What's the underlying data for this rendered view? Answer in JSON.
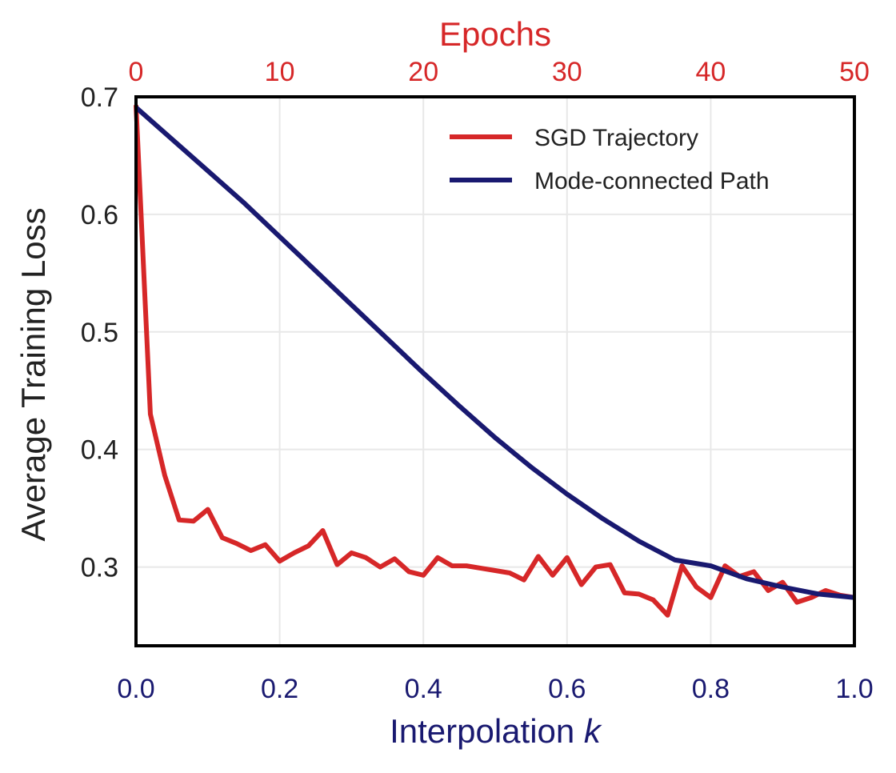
{
  "chart_data": {
    "type": "line",
    "title": "",
    "xlabel": "Interpolation ",
    "xlabel_italic": "k",
    "ylabel": "Average Training Loss",
    "top_xlabel": "Epochs",
    "xlim": [
      0,
      1
    ],
    "ylim": [
      0.233,
      0.7
    ],
    "top_xlim": [
      0,
      50
    ],
    "x_ticks": [
      "0.0",
      "0.2",
      "0.4",
      "0.6",
      "0.8",
      "1.0"
    ],
    "y_ticks": [
      "0.3",
      "0.4",
      "0.5",
      "0.6",
      "0.7"
    ],
    "top_ticks": [
      "0",
      "10",
      "20",
      "30",
      "40",
      "50"
    ],
    "grid": true,
    "legend_position": "top-right",
    "colors": {
      "sgd": "#d62728",
      "mode": "#191970",
      "bottom_axis_text": "#191970",
      "top_axis_text": "#d62728",
      "grid": "#e8e8e8",
      "frame": "#000000"
    },
    "series": [
      {
        "name": "SGD Trajectory",
        "key": "sgd",
        "x": [
          0,
          0.02,
          0.04,
          0.06,
          0.08,
          0.1,
          0.12,
          0.14,
          0.16,
          0.18,
          0.2,
          0.22,
          0.24,
          0.26,
          0.28,
          0.3,
          0.32,
          0.34,
          0.36,
          0.38,
          0.4,
          0.42,
          0.44,
          0.46,
          0.48,
          0.5,
          0.52,
          0.54,
          0.56,
          0.58,
          0.6,
          0.62,
          0.64,
          0.66,
          0.68,
          0.7,
          0.72,
          0.74,
          0.76,
          0.78,
          0.8,
          0.82,
          0.84,
          0.86,
          0.88,
          0.9,
          0.92,
          0.94,
          0.96,
          0.98,
          1.0
        ],
        "values": [
          0.693,
          0.43,
          0.378,
          0.34,
          0.339,
          0.349,
          0.325,
          0.32,
          0.314,
          0.319,
          0.305,
          0.312,
          0.318,
          0.331,
          0.302,
          0.312,
          0.308,
          0.3,
          0.307,
          0.296,
          0.293,
          0.308,
          0.301,
          0.301,
          0.299,
          0.297,
          0.295,
          0.289,
          0.309,
          0.293,
          0.308,
          0.285,
          0.3,
          0.302,
          0.278,
          0.277,
          0.272,
          0.259,
          0.301,
          0.283,
          0.274,
          0.301,
          0.292,
          0.296,
          0.28,
          0.287,
          0.27,
          0.274,
          0.28,
          0.276,
          0.274
        ]
      },
      {
        "name": "Mode-connected Path",
        "key": "mode",
        "x": [
          0,
          0.05,
          0.1,
          0.15,
          0.2,
          0.25,
          0.3,
          0.35,
          0.4,
          0.45,
          0.5,
          0.55,
          0.6,
          0.65,
          0.7,
          0.75,
          0.8,
          0.85,
          0.9,
          0.95,
          1.0
        ],
        "values": [
          0.691,
          0.664,
          0.637,
          0.61,
          0.581,
          0.552,
          0.523,
          0.494,
          0.465,
          0.437,
          0.41,
          0.385,
          0.362,
          0.341,
          0.322,
          0.306,
          0.301,
          0.29,
          0.283,
          0.277,
          0.274
        ]
      }
    ]
  }
}
